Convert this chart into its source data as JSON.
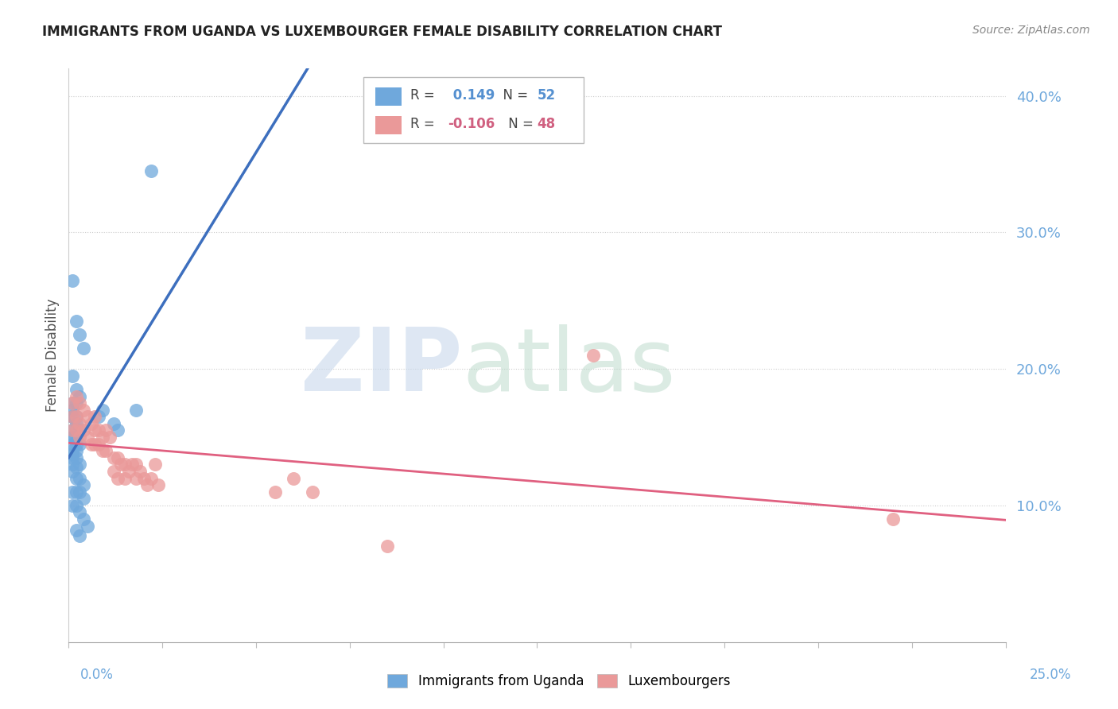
{
  "title": "IMMIGRANTS FROM UGANDA VS LUXEMBOURGER FEMALE DISABILITY CORRELATION CHART",
  "source": "Source: ZipAtlas.com",
  "ylabel": "Female Disability",
  "xlim": [
    0.0,
    0.25
  ],
  "ylim": [
    0.0,
    0.42
  ],
  "color_blue": "#6fa8dc",
  "color_pink": "#ea9999",
  "color_line_blue": "#3d6fbe",
  "color_line_pink": "#e06080",
  "color_line_blue_dashed": "#a0b8d8",
  "uganda_x": [
    0.022,
    0.001,
    0.002,
    0.003,
    0.004,
    0.001,
    0.002,
    0.003,
    0.001,
    0.002,
    0.001,
    0.002,
    0.001,
    0.001,
    0.002,
    0.003,
    0.001,
    0.002,
    0.001,
    0.001,
    0.002,
    0.001,
    0.002,
    0.003,
    0.001,
    0.002,
    0.001,
    0.001,
    0.002,
    0.003,
    0.001,
    0.002,
    0.001,
    0.002,
    0.003,
    0.004,
    0.001,
    0.002,
    0.003,
    0.004,
    0.001,
    0.002,
    0.003,
    0.004,
    0.005,
    0.002,
    0.003,
    0.008,
    0.009,
    0.012,
    0.013,
    0.018
  ],
  "uganda_y": [
    0.345,
    0.265,
    0.235,
    0.225,
    0.215,
    0.195,
    0.185,
    0.18,
    0.175,
    0.175,
    0.17,
    0.165,
    0.165,
    0.165,
    0.16,
    0.155,
    0.155,
    0.155,
    0.15,
    0.15,
    0.148,
    0.145,
    0.145,
    0.145,
    0.14,
    0.14,
    0.138,
    0.135,
    0.135,
    0.13,
    0.13,
    0.128,
    0.125,
    0.12,
    0.12,
    0.115,
    0.11,
    0.11,
    0.11,
    0.105,
    0.1,
    0.1,
    0.095,
    0.09,
    0.085,
    0.082,
    0.078,
    0.165,
    0.17,
    0.16,
    0.155,
    0.17
  ],
  "lux_x": [
    0.001,
    0.001,
    0.001,
    0.002,
    0.002,
    0.002,
    0.003,
    0.003,
    0.003,
    0.004,
    0.004,
    0.005,
    0.005,
    0.006,
    0.006,
    0.007,
    0.007,
    0.007,
    0.008,
    0.008,
    0.009,
    0.009,
    0.01,
    0.01,
    0.011,
    0.012,
    0.012,
    0.013,
    0.013,
    0.014,
    0.015,
    0.015,
    0.016,
    0.017,
    0.018,
    0.018,
    0.019,
    0.02,
    0.021,
    0.022,
    0.023,
    0.024,
    0.055,
    0.06,
    0.065,
    0.085,
    0.14,
    0.22
  ],
  "lux_y": [
    0.175,
    0.165,
    0.155,
    0.18,
    0.165,
    0.155,
    0.175,
    0.16,
    0.15,
    0.17,
    0.155,
    0.165,
    0.15,
    0.16,
    0.145,
    0.165,
    0.155,
    0.145,
    0.155,
    0.145,
    0.15,
    0.14,
    0.155,
    0.14,
    0.15,
    0.135,
    0.125,
    0.135,
    0.12,
    0.13,
    0.13,
    0.12,
    0.125,
    0.13,
    0.13,
    0.12,
    0.125,
    0.12,
    0.115,
    0.12,
    0.13,
    0.115,
    0.11,
    0.12,
    0.11,
    0.07,
    0.21,
    0.09
  ]
}
